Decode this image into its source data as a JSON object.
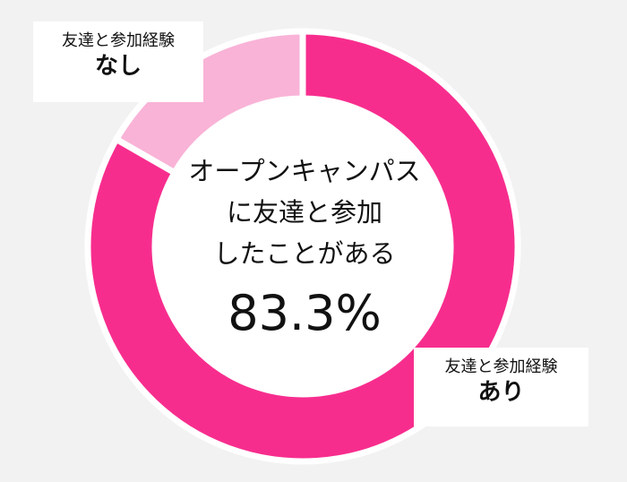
{
  "chart_data": {
    "type": "pie",
    "variant": "donut",
    "categories": [
      "友達と参加経験なし",
      "友達と参加経験あり"
    ],
    "values": [
      16.7,
      83.3
    ],
    "colors": [
      "#f9b3d7",
      "#f72d8e"
    ],
    "center_label": {
      "lines": [
        "オープンキャンパス",
        "に友達と参加",
        "したことがある"
      ],
      "value": "83.3%"
    },
    "callouts": [
      {
        "category": "友達と参加経験",
        "value": "なし"
      },
      {
        "category": "友達と参加経験",
        "value": "あり"
      }
    ]
  }
}
